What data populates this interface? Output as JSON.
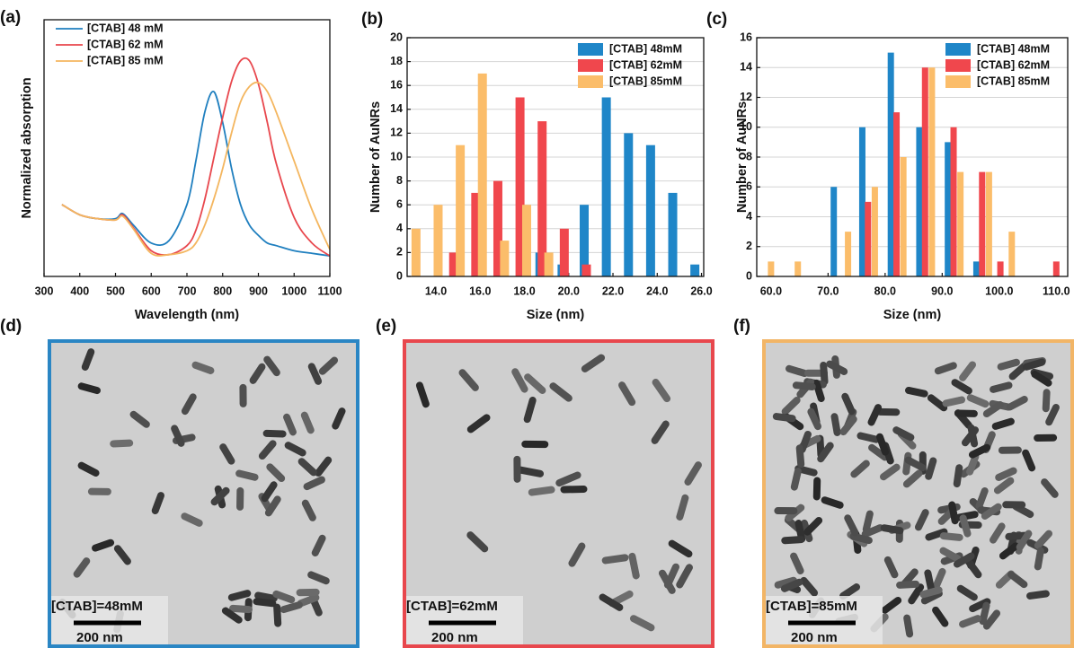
{
  "chart_data": [
    {
      "type": "line",
      "panel_label": "(a)",
      "x_label": "Wavelength (nm)",
      "y_label": "Normalized absorption",
      "x": [
        350,
        400,
        450,
        500,
        520,
        550,
        600,
        650,
        700,
        725,
        750,
        775,
        800,
        825,
        850,
        875,
        900,
        925,
        950,
        1000,
        1050,
        1100
      ],
      "series": [
        {
          "name": "[CTAB] 48 mM",
          "color": "#1f7fbf",
          "values": [
            0.28,
            0.24,
            0.225,
            0.225,
            0.245,
            0.2,
            0.13,
            0.14,
            0.28,
            0.45,
            0.64,
            0.72,
            0.6,
            0.42,
            0.28,
            0.2,
            0.16,
            0.13,
            0.12,
            0.1,
            0.09,
            0.08
          ]
        },
        {
          "name": "[CTAB] 62 mM",
          "color": "#e8474d",
          "values": [
            0.28,
            0.24,
            0.225,
            0.22,
            0.24,
            0.19,
            0.1,
            0.085,
            0.12,
            0.18,
            0.3,
            0.46,
            0.62,
            0.76,
            0.84,
            0.84,
            0.75,
            0.6,
            0.44,
            0.23,
            0.13,
            0.08
          ]
        },
        {
          "name": "[CTAB] 85 mM",
          "color": "#f4b65f",
          "values": [
            0.28,
            0.24,
            0.225,
            0.22,
            0.235,
            0.185,
            0.09,
            0.085,
            0.1,
            0.13,
            0.2,
            0.3,
            0.42,
            0.56,
            0.68,
            0.74,
            0.755,
            0.72,
            0.64,
            0.45,
            0.26,
            0.105
          ]
        }
      ],
      "xlim": [
        300,
        1100
      ],
      "xticks": [
        300,
        400,
        500,
        600,
        700,
        800,
        900,
        1000,
        1100
      ],
      "ylim": [
        0,
        1
      ],
      "grid": false,
      "legend": "upper left"
    },
    {
      "type": "bar",
      "panel_label": "(b)",
      "x_label": "Size (nm)",
      "y_label": "Number of AuNRs",
      "series": [
        {
          "name": "[CTAB] 48mM",
          "color": "#1f86c8",
          "x": [
            18.7,
            19.7,
            20.7,
            21.7,
            22.7,
            23.7,
            24.7,
            25.7
          ],
          "values": [
            2,
            1,
            6,
            15,
            12,
            11,
            7,
            1
          ]
        },
        {
          "name": "[CTAB] 62mM",
          "color": "#f0474d",
          "x": [
            14.8,
            15.8,
            16.8,
            17.8,
            18.8,
            19.8,
            20.8
          ],
          "values": [
            2,
            7,
            8,
            15,
            13,
            4,
            1
          ]
        },
        {
          "name": "[CTAB] 85mM",
          "color": "#fbbd6a",
          "x": [
            13.1,
            14.1,
            15.1,
            16.1,
            17.1,
            18.1,
            19.1
          ],
          "values": [
            4,
            6,
            11,
            17,
            3,
            6,
            2
          ]
        }
      ],
      "xlim": [
        12.7,
        26.1
      ],
      "xticks": [
        {
          "value": 14,
          "label": "14.0"
        },
        {
          "value": 16,
          "label": "16.0"
        },
        {
          "value": 18,
          "label": "18.0"
        },
        {
          "value": 20,
          "label": "20.0"
        },
        {
          "value": 22,
          "label": "22.0"
        },
        {
          "value": 24,
          "label": "24.0"
        },
        {
          "value": 26,
          "label": "26.0"
        }
      ],
      "ylim": [
        0,
        20
      ],
      "yticks": [
        0,
        2,
        4,
        6,
        8,
        10,
        12,
        14,
        16,
        18,
        20
      ],
      "grid": true,
      "legend": "upper right"
    },
    {
      "type": "bar",
      "panel_label": "(c)",
      "x_label": "Size (nm)",
      "y_label": "Number of AuNRs",
      "series": [
        {
          "name": "[CTAB] 48mM",
          "color": "#1f86c8",
          "x": [
            71.0,
            76.0,
            81.0,
            86.0,
            91.0,
            96.0
          ],
          "values": [
            6,
            10,
            15,
            10,
            9,
            1
          ]
        },
        {
          "name": "[CTAB] 62mM",
          "color": "#f0474d",
          "x": [
            77.0,
            82.0,
            87.0,
            92.0,
            97.0,
            100.2,
            110.0
          ],
          "values": [
            5,
            11,
            14,
            10,
            7,
            1,
            1
          ]
        },
        {
          "name": "[CTAB] 85mM",
          "color": "#fbbd6a",
          "x": [
            60.0,
            64.7,
            73.5,
            78.2,
            83.2,
            88.2,
            93.2,
            98.2,
            102.2
          ],
          "values": [
            1,
            1,
            3,
            6,
            8,
            14,
            7,
            7,
            3
          ]
        }
      ],
      "xlim": [
        57.5,
        112
      ],
      "xticks": [
        {
          "value": 60,
          "label": "60.0"
        },
        {
          "value": 70,
          "label": "70.0"
        },
        {
          "value": 80,
          "label": "80.0"
        },
        {
          "value": 90,
          "label": "90.0"
        },
        {
          "value": 100,
          "label": "100.0"
        },
        {
          "value": 110,
          "label": "110.0"
        }
      ],
      "ylim": [
        0,
        16
      ],
      "yticks": [
        0,
        2,
        4,
        6,
        8,
        10,
        12,
        14,
        16
      ],
      "grid": true,
      "legend": "upper right"
    }
  ],
  "images": [
    {
      "label": "(d)",
      "annotation": "[CTAB]=48mM",
      "scale_bar": "200 nm",
      "frame_color": "#2a86c4"
    },
    {
      "label": "(e)",
      "annotation": "[CTAB]=62mM",
      "scale_bar": "200 nm",
      "frame_color": "#e8474d"
    },
    {
      "label": "(f)",
      "annotation": "[CTAB]=85mM",
      "scale_bar": "200 nm",
      "frame_color": "#f2b566"
    }
  ]
}
